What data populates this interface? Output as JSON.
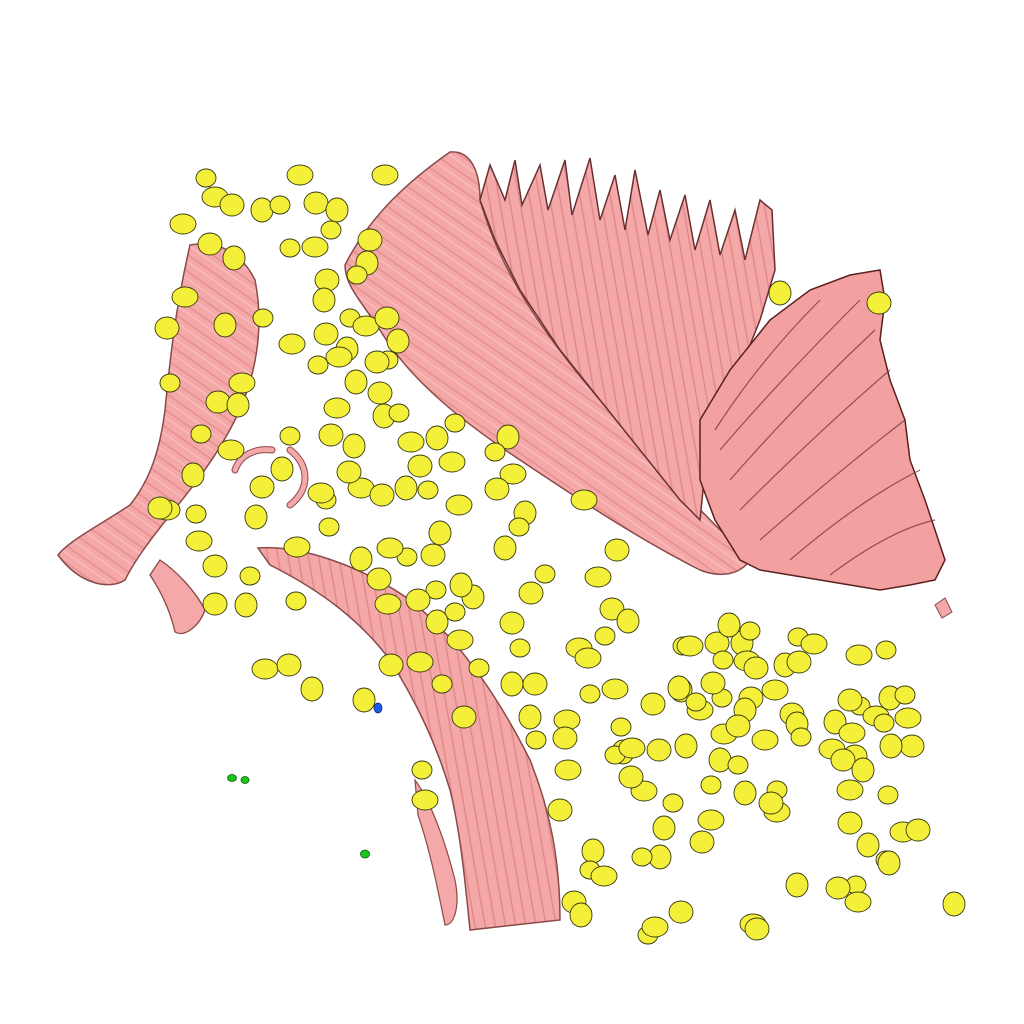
{
  "scene": {
    "background": "#ffffff",
    "structures": [
      {
        "name": "fiber-bundle",
        "color": "#f4a8a8",
        "edge_color": "#8a4a4a",
        "count": 5
      },
      {
        "name": "cell-body",
        "color": "#f4f03a",
        "edge_color": "#3a3a10"
      },
      {
        "name": "green-marker",
        "color": "#18c818",
        "count": 3
      },
      {
        "name": "blue-marker",
        "color": "#1e5be8",
        "count": 1
      }
    ]
  }
}
